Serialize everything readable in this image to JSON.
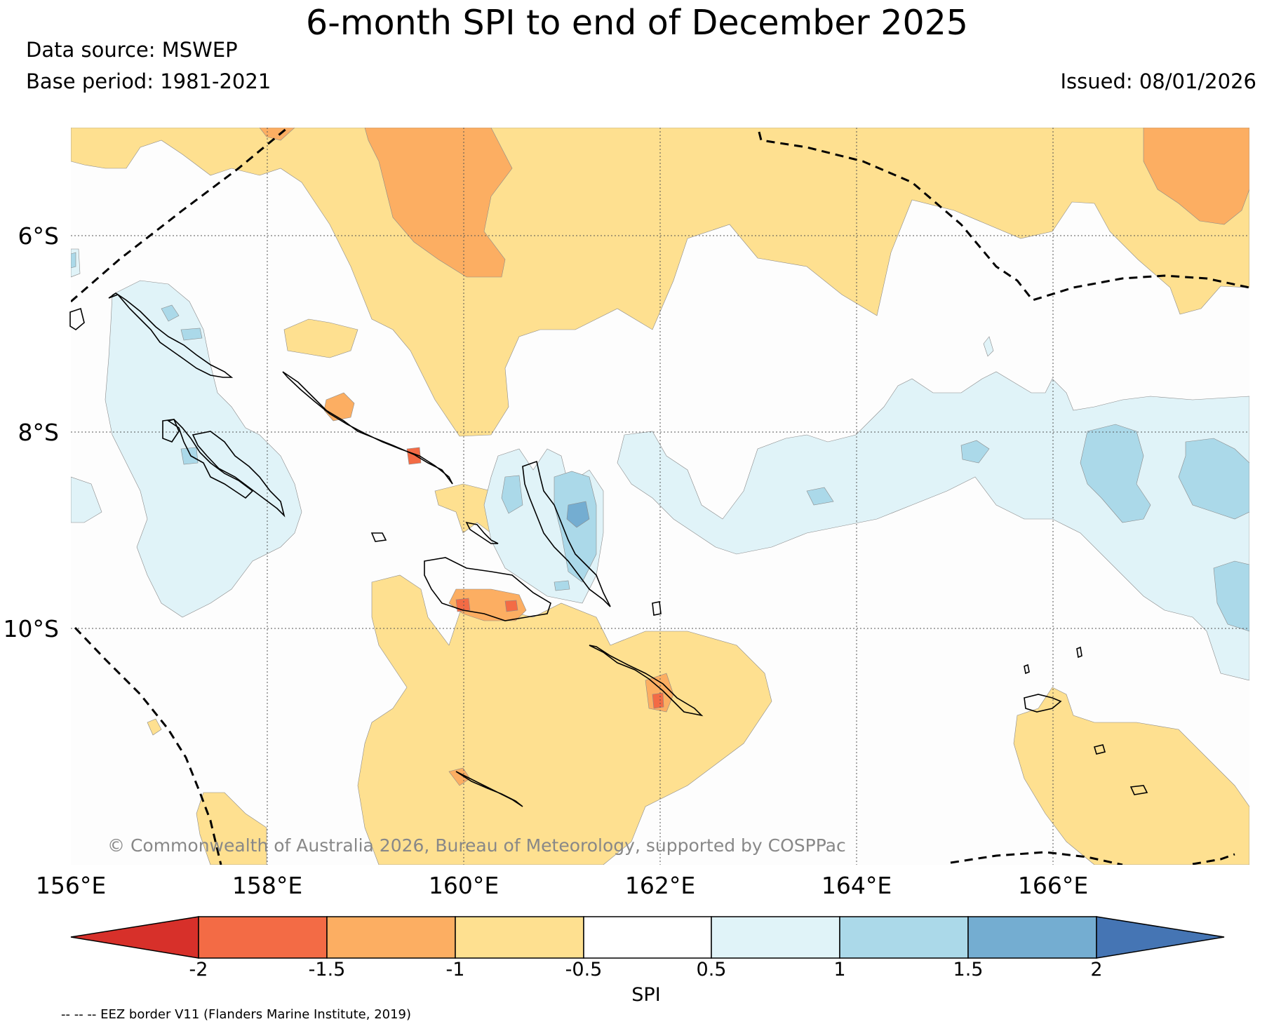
{
  "title": "6-month SPI to end of December 2025",
  "data_source": "Data source: MSWEP",
  "base_period": "Base period: 1981-2021",
  "issued": "Issued: 08/01/2026",
  "copyright": "© Commonwealth of Australia 2026, Bureau of Meteorology, supported by COSPPac",
  "map": {
    "lon_range": [
      156,
      168
    ],
    "lat_range": [
      -4.9,
      -12.4
    ],
    "lat_labels": [
      "6°S",
      "8°S",
      "10°S"
    ],
    "lon_labels": [
      "156°E",
      "158°E",
      "160°E",
      "162°E",
      "164°E",
      "166°E"
    ]
  },
  "colorbar": {
    "title": "SPI",
    "tick_labels": [
      "-2",
      "-1.5",
      "-1",
      "-0.5",
      "0.5",
      "1",
      "1.5",
      "2"
    ],
    "colors": [
      "#d7302a",
      "#f36b45",
      "#fcae62",
      "#fee090",
      "#ffffff",
      "#e0f3f8",
      "#abd9e9",
      "#74add1",
      "#4575b4"
    ]
  },
  "legend_note": "-- -- -- EEZ border V11 (Flanders Marine Institute, 2019)"
}
